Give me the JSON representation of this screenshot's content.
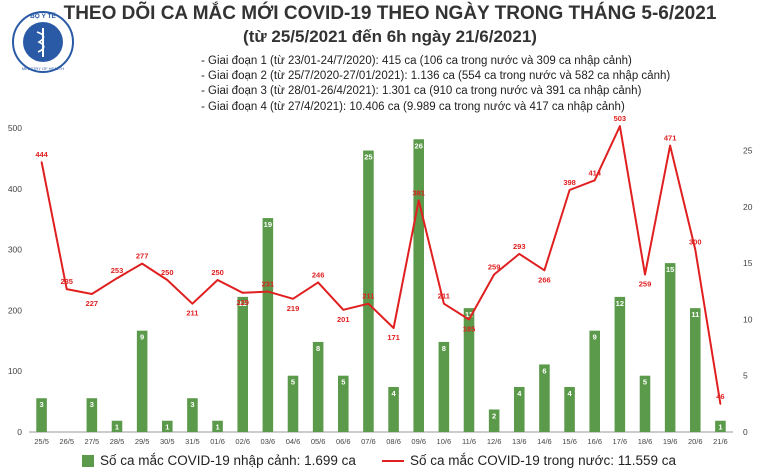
{
  "header": {
    "logo_text_top": "BỘ Y TẾ",
    "logo_text_bottom": "MINISTRY OF HEALTH",
    "title": "THEO DÕI CA MẮC MỚI COVID-19 THEO NGÀY TRONG THÁNG 5-6/2021",
    "subtitle": "(từ 25/5/2021 đến 6h ngày 21/6/2021)"
  },
  "phases": [
    "- Giai đoạn 1 (từ 23/01-24/7/2020): 415 ca (106 ca trong nước và 309 ca nhập cảnh)",
    "- Giai đoạn 2 (từ 25/7/2020-27/01/2021): 1.136 ca (554 ca trong nước và 582 ca nhập cảnh)",
    "- Giai đoạn 3 (từ 28/01-26/4/2021): 1.301 ca (910 ca trong nước và 391 ca nhập cảnh)",
    "- Giai đoạn 4 (từ 27/4/2021): 10.406 ca (9.989 ca trong nước và 417 ca nhập cảnh)"
  ],
  "colors": {
    "bar": "#5a9a4a",
    "bar_label": "#ffffff",
    "line": "#e02020",
    "line_label": "#e02020",
    "grid": "#dddddd",
    "logo": "#2a5aa6"
  },
  "chart_data": {
    "type": "bar+line",
    "categories": [
      "25/5",
      "26/5",
      "27/5",
      "28/5",
      "29/5",
      "30/5",
      "31/5",
      "01/6",
      "02/6",
      "03/6",
      "04/6",
      "05/6",
      "06/6",
      "07/6",
      "08/6",
      "09/6",
      "10/6",
      "11/6",
      "12/6",
      "13/6",
      "14/6",
      "15/6",
      "16/6",
      "17/6",
      "18/6",
      "19/6",
      "20/6",
      "21/6"
    ],
    "series": [
      {
        "name": "Số ca mắc COVID-19 nhập cảnh: 1.699 ca",
        "type": "bar",
        "axis": "right",
        "values": [
          3,
          0,
          3,
          1,
          9,
          1,
          3,
          1,
          12,
          19,
          5,
          8,
          5,
          25,
          4,
          26,
          8,
          11,
          2,
          4,
          6,
          4,
          9,
          12,
          5,
          15,
          11,
          1
        ],
        "labels": [
          "3",
          "",
          "3",
          "1",
          "9",
          "1",
          "3",
          "1",
          "12",
          "19",
          "5",
          "8",
          "5",
          "25",
          "4",
          "26",
          "8",
          "11",
          "2",
          "4",
          "6",
          "4",
          "9",
          "12",
          "5",
          "15",
          "11",
          "1"
        ]
      },
      {
        "name": "Số ca mắc COVID-19 trong nước: 11.559 ca",
        "type": "line",
        "axis": "left",
        "values": [
          444,
          235,
          227,
          253,
          277,
          250,
          211,
          250,
          229,
          231,
          219,
          246,
          201,
          211,
          171,
          381,
          211,
          185,
          259,
          293,
          266,
          398,
          414,
          503,
          259,
          471,
          300,
          46
        ],
        "labels": [
          "444",
          "235",
          "227",
          "253",
          "277",
          "250",
          "211",
          "250",
          "229",
          "231",
          "219",
          "246",
          "201",
          "211",
          "171",
          "381",
          "211",
          "185",
          "259",
          "293",
          "266",
          "398",
          "414",
          "503",
          "259",
          "471",
          "300",
          "46"
        ]
      }
    ],
    "y_left": {
      "range": [
        0,
        500
      ],
      "ticks": [
        "0",
        "100",
        "200",
        "300",
        "400",
        "500"
      ]
    },
    "y_right": {
      "range": [
        0,
        27
      ],
      "ticks": [
        "0",
        "5",
        "10",
        "15",
        "20",
        "25"
      ]
    },
    "grid": false,
    "legend": "bottom"
  },
  "legend": {
    "bar_label": "Số ca mắc COVID-19 nhập cảnh: 1.699 ca",
    "line_label": "Số ca mắc COVID-19 trong nước: 11.559 ca"
  }
}
